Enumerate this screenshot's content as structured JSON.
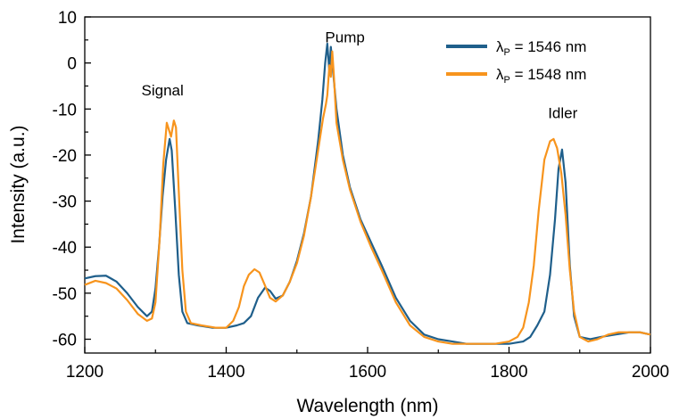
{
  "chart_data": {
    "type": "line",
    "xlabel": "Wavelength (nm)",
    "ylabel": "Intensity (a.u.)",
    "xlim": [
      1200,
      2000
    ],
    "ylim": [
      -63,
      10
    ],
    "xticks": [
      1200,
      1400,
      1600,
      1800,
      2000
    ],
    "yticks": [
      10,
      0,
      -10,
      -20,
      -30,
      -40,
      -50,
      -60
    ],
    "grid": false,
    "legend_position": "top-right",
    "annotations": [
      {
        "text": "Signal",
        "x": 1310,
        "y": -7
      },
      {
        "text": "Pump",
        "x": 1568,
        "y": 4.5
      },
      {
        "text": "Idler",
        "x": 1876,
        "y": -12
      }
    ],
    "series": [
      {
        "name": "λP = 1546 nm",
        "legend_main": "λ",
        "legend_sub": "P",
        "legend_rest": " = 1546 nm",
        "color": "#1f5f8b",
        "points": [
          [
            1200,
            -46.8
          ],
          [
            1215,
            -46.3
          ],
          [
            1230,
            -46.2
          ],
          [
            1245,
            -47.5
          ],
          [
            1260,
            -50
          ],
          [
            1275,
            -53
          ],
          [
            1288,
            -55
          ],
          [
            1295,
            -54
          ],
          [
            1300,
            -49
          ],
          [
            1305,
            -40
          ],
          [
            1310,
            -29
          ],
          [
            1315,
            -21
          ],
          [
            1320,
            -16.5
          ],
          [
            1323,
            -19
          ],
          [
            1328,
            -32
          ],
          [
            1333,
            -46
          ],
          [
            1338,
            -54
          ],
          [
            1345,
            -56.5
          ],
          [
            1360,
            -57
          ],
          [
            1380,
            -57.5
          ],
          [
            1400,
            -57.5
          ],
          [
            1415,
            -57
          ],
          [
            1425,
            -56.5
          ],
          [
            1435,
            -55
          ],
          [
            1445,
            -51
          ],
          [
            1455,
            -48.8
          ],
          [
            1462,
            -49.5
          ],
          [
            1470,
            -51.2
          ],
          [
            1480,
            -50.5
          ],
          [
            1490,
            -47.5
          ],
          [
            1500,
            -43
          ],
          [
            1510,
            -37
          ],
          [
            1520,
            -29
          ],
          [
            1530,
            -17
          ],
          [
            1536,
            -8
          ],
          [
            1540,
            0
          ],
          [
            1543,
            4.2
          ],
          [
            1546,
            -2
          ],
          [
            1548,
            3.5
          ],
          [
            1551,
            -1.5
          ],
          [
            1556,
            -10
          ],
          [
            1565,
            -20
          ],
          [
            1575,
            -27
          ],
          [
            1590,
            -34
          ],
          [
            1605,
            -39
          ],
          [
            1620,
            -44
          ],
          [
            1640,
            -51
          ],
          [
            1660,
            -56
          ],
          [
            1680,
            -59
          ],
          [
            1700,
            -60
          ],
          [
            1720,
            -60.5
          ],
          [
            1740,
            -61
          ],
          [
            1760,
            -61
          ],
          [
            1780,
            -61
          ],
          [
            1800,
            -61
          ],
          [
            1820,
            -60.5
          ],
          [
            1830,
            -59.5
          ],
          [
            1840,
            -57
          ],
          [
            1850,
            -54
          ],
          [
            1858,
            -46
          ],
          [
            1865,
            -34
          ],
          [
            1870,
            -23
          ],
          [
            1875,
            -18.8
          ],
          [
            1880,
            -26
          ],
          [
            1886,
            -44
          ],
          [
            1892,
            -55
          ],
          [
            1900,
            -59.5
          ],
          [
            1915,
            -60
          ],
          [
            1930,
            -59.5
          ],
          [
            1950,
            -59
          ],
          [
            1970,
            -58.5
          ],
          [
            1985,
            -58.5
          ],
          [
            2000,
            -59
          ]
        ]
      },
      {
        "name": "λP = 1548 nm",
        "legend_main": "λ",
        "legend_sub": "P",
        "legend_rest": " = 1548 nm",
        "color": "#f7941d",
        "points": [
          [
            1200,
            -48.2
          ],
          [
            1215,
            -47.3
          ],
          [
            1230,
            -47.8
          ],
          [
            1245,
            -49
          ],
          [
            1260,
            -51.5
          ],
          [
            1275,
            -54.5
          ],
          [
            1288,
            -56
          ],
          [
            1295,
            -55.5
          ],
          [
            1300,
            -52
          ],
          [
            1306,
            -38
          ],
          [
            1311,
            -22
          ],
          [
            1316,
            -13
          ],
          [
            1319,
            -14.5
          ],
          [
            1322,
            -16
          ],
          [
            1326,
            -12.5
          ],
          [
            1329,
            -14
          ],
          [
            1333,
            -28
          ],
          [
            1338,
            -45
          ],
          [
            1343,
            -54
          ],
          [
            1350,
            -56.5
          ],
          [
            1365,
            -57
          ],
          [
            1385,
            -57.5
          ],
          [
            1400,
            -57.5
          ],
          [
            1410,
            -56
          ],
          [
            1418,
            -53
          ],
          [
            1425,
            -48.5
          ],
          [
            1432,
            -46
          ],
          [
            1440,
            -44.8
          ],
          [
            1447,
            -45.5
          ],
          [
            1454,
            -48
          ],
          [
            1462,
            -51
          ],
          [
            1470,
            -51.8
          ],
          [
            1480,
            -50.5
          ],
          [
            1490,
            -47.5
          ],
          [
            1500,
            -43.5
          ],
          [
            1510,
            -37.5
          ],
          [
            1520,
            -29
          ],
          [
            1530,
            -19
          ],
          [
            1537,
            -12
          ],
          [
            1541,
            -9
          ],
          [
            1543,
            -7
          ],
          [
            1546,
            -0.5
          ],
          [
            1548,
            -3
          ],
          [
            1550,
            2.5
          ],
          [
            1552,
            -2
          ],
          [
            1556,
            -13
          ],
          [
            1565,
            -21
          ],
          [
            1575,
            -27.5
          ],
          [
            1590,
            -34.5
          ],
          [
            1605,
            -40
          ],
          [
            1620,
            -45
          ],
          [
            1640,
            -52
          ],
          [
            1660,
            -57
          ],
          [
            1680,
            -59.5
          ],
          [
            1700,
            -60.5
          ],
          [
            1720,
            -61
          ],
          [
            1740,
            -61
          ],
          [
            1760,
            -61
          ],
          [
            1780,
            -61
          ],
          [
            1800,
            -60.5
          ],
          [
            1812,
            -59.5
          ],
          [
            1820,
            -57.5
          ],
          [
            1828,
            -52
          ],
          [
            1835,
            -44
          ],
          [
            1842,
            -32
          ],
          [
            1850,
            -21
          ],
          [
            1858,
            -17
          ],
          [
            1863,
            -16.5
          ],
          [
            1868,
            -18.5
          ],
          [
            1874,
            -24
          ],
          [
            1880,
            -33
          ],
          [
            1886,
            -45
          ],
          [
            1892,
            -54
          ],
          [
            1900,
            -59.5
          ],
          [
            1912,
            -60.5
          ],
          [
            1925,
            -60
          ],
          [
            1940,
            -59
          ],
          [
            1955,
            -58.5
          ],
          [
            1970,
            -58.5
          ],
          [
            1985,
            -58.5
          ],
          [
            2000,
            -59
          ]
        ]
      }
    ]
  }
}
